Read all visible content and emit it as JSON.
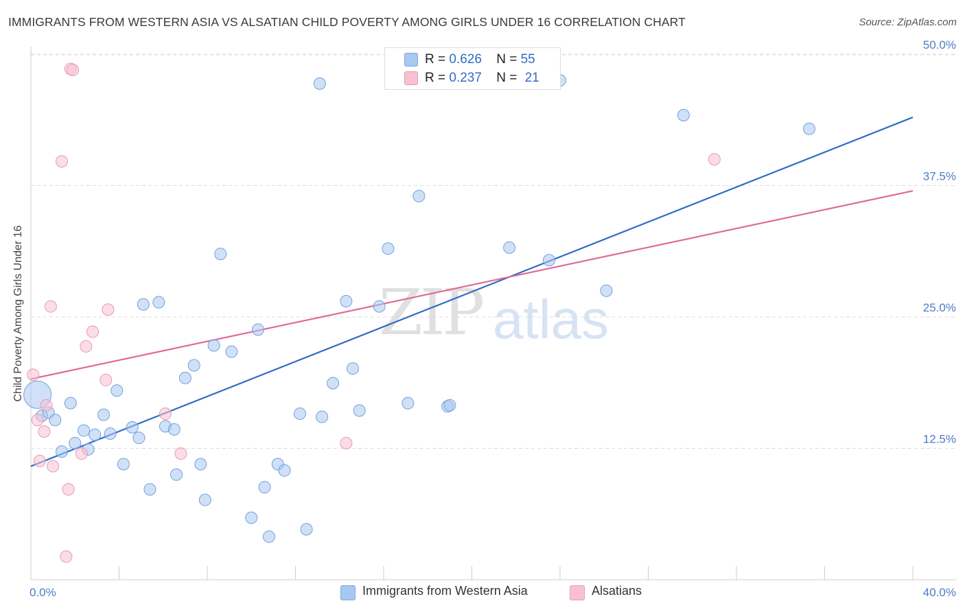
{
  "title": "IMMIGRANTS FROM WESTERN ASIA VS ALSATIAN CHILD POVERTY AMONG GIRLS UNDER 16 CORRELATION CHART",
  "source": "Source: ZipAtlas.com",
  "watermark": {
    "zip": "ZIP",
    "atlas": "atlas"
  },
  "legend_top": {
    "rows": [
      {
        "r_label": "R =",
        "r_value": "0.626",
        "n_label": "N =",
        "n_value": "55",
        "color": "#a9c8f0"
      },
      {
        "r_label": "R =",
        "r_value": "0.237",
        "n_label": "N =",
        "n_value": "21",
        "color": "#f7c1d2"
      }
    ]
  },
  "legend_bottom": [
    {
      "label": "Immigrants from Western Asia",
      "color": "#a9c8f0"
    },
    {
      "label": "Alsatians",
      "color": "#f7c1d2"
    }
  ],
  "chart_data": {
    "type": "scatter",
    "ylabel": "Child Poverty Among Girls Under 16",
    "xlim": [
      0,
      40
    ],
    "ylim": [
      0,
      50
    ],
    "yticks": [
      12.5,
      25.0,
      37.5,
      50.0
    ],
    "ytick_labels": [
      "12.5%",
      "25.0%",
      "37.5%",
      "50.0%"
    ],
    "x_edge_labels": [
      "0.0%",
      "40.0%"
    ],
    "grid": true,
    "series": [
      {
        "name": "Immigrants from Western Asia",
        "color": "#6fa0dc",
        "fill": "#a9c8f0",
        "trend": {
          "x": [
            0,
            40
          ],
          "y": [
            10.8,
            44.0
          ],
          "color": "#2f6cc5"
        },
        "points": [
          [
            0.3,
            17.6,
            "big"
          ],
          [
            0.5,
            15.6
          ],
          [
            0.8,
            15.9
          ],
          [
            1.1,
            15.2
          ],
          [
            1.4,
            12.2
          ],
          [
            1.8,
            16.8
          ],
          [
            2.0,
            13.0
          ],
          [
            2.4,
            14.2
          ],
          [
            2.6,
            12.4
          ],
          [
            2.9,
            13.8
          ],
          [
            3.3,
            15.7
          ],
          [
            3.6,
            13.9
          ],
          [
            3.9,
            18.0
          ],
          [
            4.2,
            11.0
          ],
          [
            4.6,
            14.5
          ],
          [
            4.9,
            13.5
          ],
          [
            5.1,
            26.2
          ],
          [
            5.4,
            8.6
          ],
          [
            5.8,
            26.4
          ],
          [
            6.1,
            14.6
          ],
          [
            6.5,
            14.3
          ],
          [
            6.6,
            10.0
          ],
          [
            7.0,
            19.2
          ],
          [
            7.4,
            20.4
          ],
          [
            7.7,
            11.0
          ],
          [
            7.9,
            7.6
          ],
          [
            8.3,
            22.3
          ],
          [
            8.6,
            31.0
          ],
          [
            9.1,
            21.7
          ],
          [
            10.0,
            5.9
          ],
          [
            10.3,
            23.8
          ],
          [
            10.6,
            8.8
          ],
          [
            10.8,
            4.1
          ],
          [
            11.2,
            11.0
          ],
          [
            11.5,
            10.4
          ],
          [
            12.2,
            15.8
          ],
          [
            12.5,
            4.8
          ],
          [
            13.2,
            15.5
          ],
          [
            13.1,
            47.2
          ],
          [
            13.7,
            18.7
          ],
          [
            14.3,
            26.5
          ],
          [
            14.6,
            20.1
          ],
          [
            14.9,
            16.1
          ],
          [
            15.8,
            26.0
          ],
          [
            16.2,
            31.5
          ],
          [
            17.1,
            16.8
          ],
          [
            17.6,
            36.5
          ],
          [
            18.9,
            16.5
          ],
          [
            19.0,
            16.6
          ],
          [
            21.7,
            31.6
          ],
          [
            23.5,
            30.4
          ],
          [
            24.0,
            47.5
          ],
          [
            26.1,
            27.5
          ],
          [
            29.6,
            44.2
          ],
          [
            35.3,
            42.9
          ]
        ]
      },
      {
        "name": "Alsatians",
        "color": "#e898b3",
        "fill": "#f7c1d2",
        "trend": {
          "x": [
            0,
            40
          ],
          "y": [
            19.1,
            37.0
          ],
          "color": "#e06a96"
        },
        "points": [
          [
            0.1,
            19.5
          ],
          [
            0.3,
            15.2
          ],
          [
            0.4,
            11.3
          ],
          [
            0.6,
            14.1
          ],
          [
            0.7,
            16.6
          ],
          [
            0.9,
            26.0
          ],
          [
            1.0,
            10.8
          ],
          [
            1.4,
            39.8
          ],
          [
            1.7,
            8.6
          ],
          [
            1.8,
            48.6
          ],
          [
            1.9,
            48.5
          ],
          [
            1.6,
            2.2
          ],
          [
            2.3,
            12.0
          ],
          [
            2.5,
            22.2
          ],
          [
            2.8,
            23.6
          ],
          [
            3.4,
            19.0
          ],
          [
            3.5,
            25.7
          ],
          [
            6.1,
            15.8
          ],
          [
            6.8,
            12.0
          ],
          [
            14.3,
            13.0
          ],
          [
            31.0,
            40.0
          ]
        ]
      }
    ]
  }
}
